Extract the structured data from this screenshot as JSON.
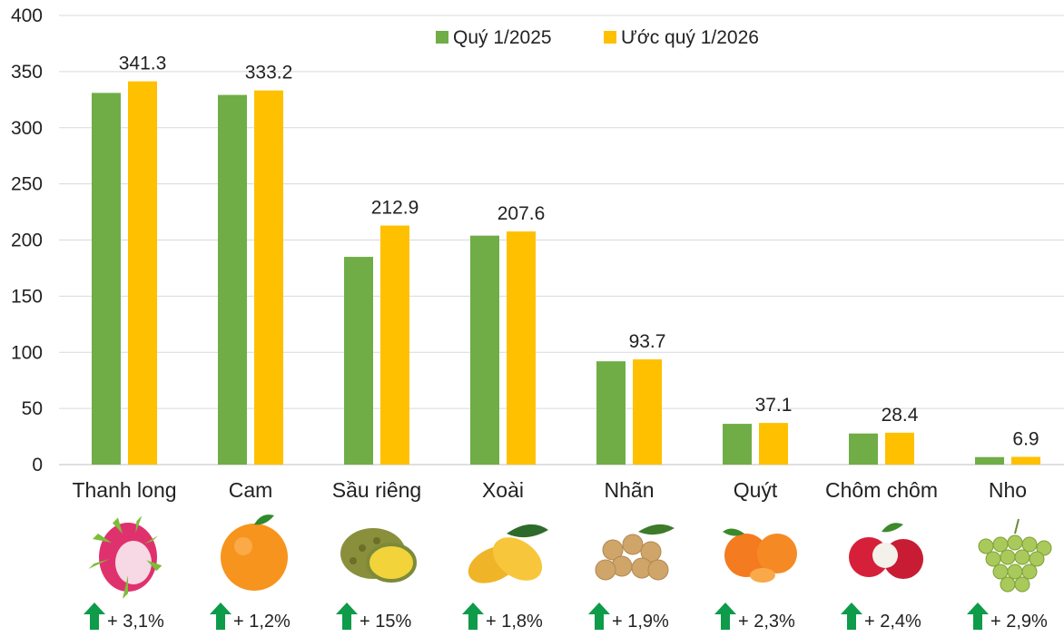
{
  "chart_data": {
    "type": "bar",
    "title": "",
    "xlabel": "",
    "ylabel": "",
    "ylim": [
      0,
      400
    ],
    "yticks": [
      0,
      50,
      100,
      150,
      200,
      250,
      300,
      350,
      400
    ],
    "grid": true,
    "legend_position": "top-center",
    "categories": [
      "Thanh long",
      "Cam",
      "Sầu riêng",
      "Xoài",
      "Nhãn",
      "Quýt",
      "Chôm chôm",
      "Nho"
    ],
    "series": [
      {
        "name": "Quý 1/2025",
        "color": "#70AD47",
        "values": [
          331,
          329.2,
          185,
          203.9,
          92,
          36.3,
          27.7,
          6.7
        ]
      },
      {
        "name": "Ước quý 1/2026",
        "color": "#FFC000",
        "values": [
          341.3,
          333.2,
          212.9,
          207.6,
          93.7,
          37.1,
          28.4,
          6.9
        ]
      }
    ],
    "data_labels": [
      "341.3",
      "333.2",
      "212.9",
      "207.6",
      "93.7",
      "37.1",
      "28.4",
      "6.9"
    ],
    "changes": [
      "+ 3,1%",
      "+ 1,2%",
      "+ 15%",
      "+ 1,8%",
      "+ 1,9%",
      "+ 2,3%",
      "+ 2,4%",
      "+ 2,9%"
    ],
    "change_icon": "up-arrow-icon",
    "change_color": "#0E9B4A",
    "fruit_icons": [
      "dragon-fruit-icon",
      "orange-icon",
      "durian-icon",
      "mango-icon",
      "longan-icon",
      "tangerine-icon",
      "rambutan-icon",
      "grape-icon"
    ]
  }
}
